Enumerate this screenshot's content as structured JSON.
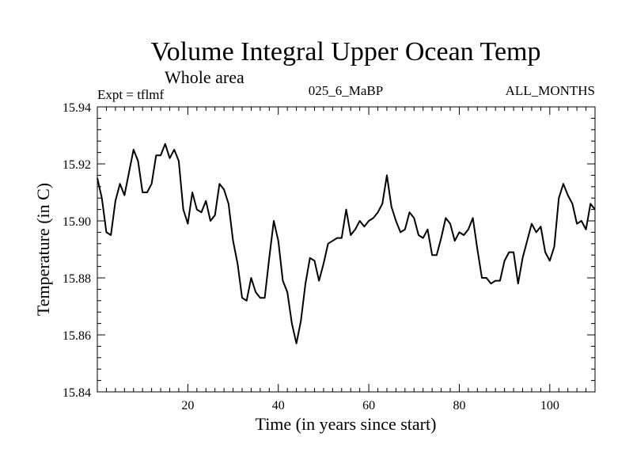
{
  "chart_data": {
    "type": "line",
    "title": "Volume Integral Upper Ocean Temp",
    "subtitle": "Whole area",
    "experiment": "Expt = tflmf",
    "run_id": "025_6_MaBP",
    "months": "ALL_MONTHS",
    "xlabel": "Time (in years since start)",
    "ylabel": "Temperature (in C)",
    "xlim": [
      0,
      110
    ],
    "ylim": [
      15.84,
      15.94
    ],
    "x_ticks": [
      20,
      40,
      60,
      80,
      100
    ],
    "y_ticks": [
      "15.84",
      "15.86",
      "15.88",
      "15.90",
      "15.92",
      "15.94"
    ],
    "grid": false,
    "series": [
      {
        "name": "tflmf",
        "color": "#000000",
        "x": [
          0,
          1,
          2,
          3,
          4,
          5,
          6,
          7,
          8,
          9,
          10,
          11,
          12,
          13,
          14,
          15,
          16,
          17,
          18,
          19,
          20,
          21,
          22,
          23,
          24,
          25,
          26,
          27,
          28,
          29,
          30,
          31,
          32,
          33,
          34,
          35,
          36,
          37,
          38,
          39,
          40,
          41,
          42,
          43,
          44,
          45,
          46,
          47,
          48,
          49,
          50,
          51,
          52,
          53,
          54,
          55,
          56,
          57,
          58,
          59,
          60,
          61,
          62,
          63,
          64,
          65,
          66,
          67,
          68,
          69,
          70,
          71,
          72,
          73,
          74,
          75,
          76,
          77,
          78,
          79,
          80,
          81,
          82,
          83,
          84,
          85,
          86,
          87,
          88,
          89,
          90,
          91,
          92,
          93,
          94,
          95,
          96,
          97,
          98,
          99,
          100,
          101,
          102,
          103,
          104,
          105,
          106,
          107,
          108,
          109,
          110
        ],
        "values": [
          15.915,
          15.908,
          15.896,
          15.895,
          15.907,
          15.913,
          15.909,
          15.917,
          15.925,
          15.921,
          15.91,
          15.91,
          15.913,
          15.923,
          15.923,
          15.927,
          15.922,
          15.925,
          15.921,
          15.904,
          15.899,
          15.91,
          15.904,
          15.903,
          15.907,
          15.9,
          15.902,
          15.913,
          15.911,
          15.906,
          15.893,
          15.885,
          15.873,
          15.872,
          15.88,
          15.875,
          15.873,
          15.873,
          15.887,
          15.9,
          15.893,
          15.879,
          15.875,
          15.864,
          15.857,
          15.865,
          15.878,
          15.887,
          15.886,
          15.879,
          15.885,
          15.892,
          15.893,
          15.894,
          15.894,
          15.904,
          15.895,
          15.897,
          15.9,
          15.898,
          15.9,
          15.901,
          15.903,
          15.906,
          15.916,
          15.905,
          15.9,
          15.896,
          15.897,
          15.903,
          15.901,
          15.895,
          15.894,
          15.897,
          15.888,
          15.888,
          15.894,
          15.901,
          15.899,
          15.893,
          15.896,
          15.895,
          15.897,
          15.901,
          15.89,
          15.88,
          15.88,
          15.878,
          15.879,
          15.879,
          15.886,
          15.889,
          15.889,
          15.878,
          15.887,
          15.893,
          15.899,
          15.896,
          15.898,
          15.889,
          15.886,
          15.891,
          15.908,
          15.913,
          15.909,
          15.906,
          15.899,
          15.9,
          15.897,
          15.906,
          15.904
        ]
      }
    ]
  }
}
